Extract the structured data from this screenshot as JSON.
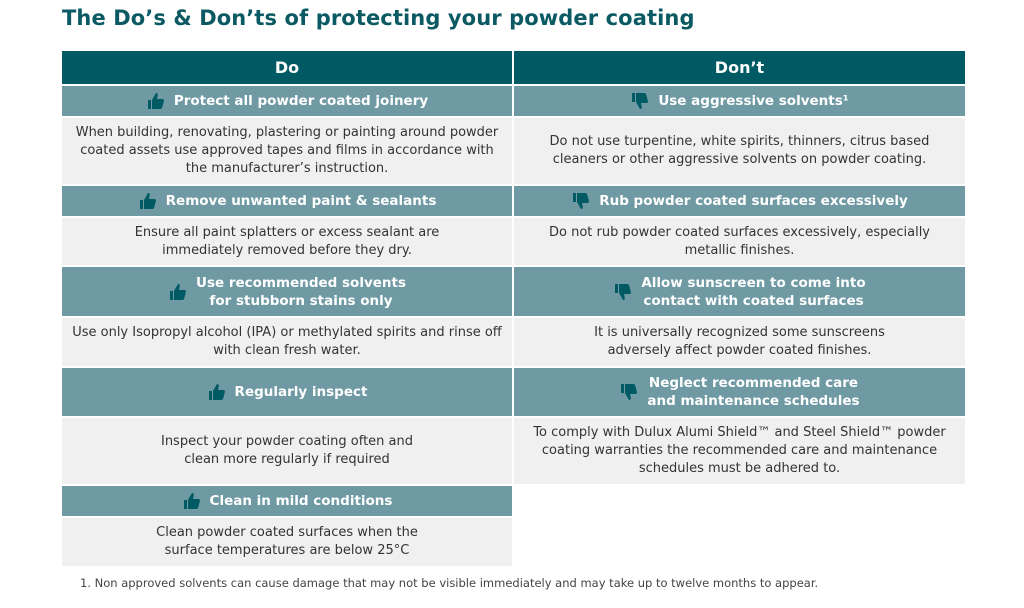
{
  "title": "The Do’s & Don’ts of protecting your powder coating",
  "columns": {
    "do": "Do",
    "dont": "Don’t"
  },
  "rows": [
    {
      "do_heading": "Protect all powder coated joinery",
      "do_text": "When building, renovating, plastering or painting around powder coated assets use approved tapes and films in accordance with the manufacturer’s instruction.",
      "dont_heading": "Use aggressive solvents¹",
      "dont_text": "Do not use turpentine, white spirits, thinners, citrus based cleaners or other aggressive solvents on powder coating."
    },
    {
      "do_heading": "Remove unwanted paint & sealants",
      "do_text": "Ensure all paint splatters or excess sealant are\nimmediately removed before they dry.",
      "dont_heading": "Rub powder coated surfaces excessively",
      "dont_text": "Do not rub powder coated surfaces excessively, especially metallic finishes."
    },
    {
      "do_heading": "Use recommended solvents\nfor stubborn stains only",
      "do_text": "Use only Isopropyl alcohol (IPA) or methylated spirits and rinse off\nwith clean fresh water.",
      "dont_heading": "Allow sunscreen to come into\ncontact with coated surfaces",
      "dont_text": "It is universally recognized some sunscreens\nadversely affect powder coated finishes."
    },
    {
      "do_heading": "Regularly inspect",
      "do_text": "Inspect your powder coating often and\nclean more regularly if required",
      "dont_heading": "Neglect recommended care\nand maintenance schedules",
      "dont_text": "To comply with Dulux Alumi Shield™ and Steel Shield™ powder coating warranties the recommended care and maintenance schedules must be adhered to."
    },
    {
      "do_heading": "Clean in mild conditions",
      "do_text": "Clean powder coated surfaces when the\nsurface temperatures are below 25°C"
    }
  ],
  "footnote": "1. Non approved solvents can cause damage that may not be visible immediately and may take up to twelve months to appear.",
  "colors": {
    "header": "#005a64",
    "subheader": "#6f9aa3",
    "body": "#f0f0f0",
    "icon": "#005a64"
  },
  "icons": {
    "do": "thumbs-up-icon",
    "dont": "thumbs-down-icon"
  }
}
